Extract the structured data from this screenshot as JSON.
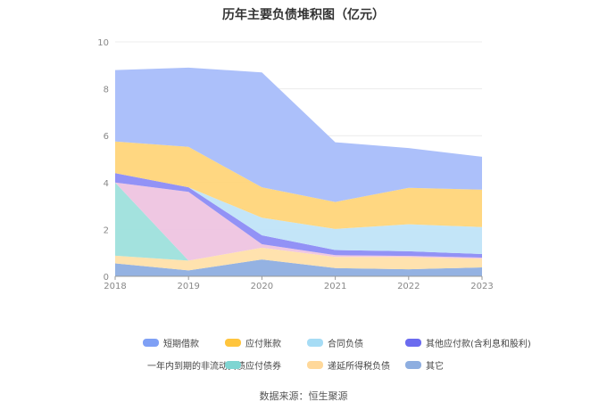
{
  "title": "历年主要负债堆积图（亿元）",
  "source": "数据来源：恒生聚源",
  "chart_data": {
    "type": "area",
    "stacked": true,
    "title": "历年主要负债堆积图（亿元）",
    "xlabel": "",
    "ylabel": "",
    "x": [
      "2018",
      "2019",
      "2020",
      "2021",
      "2022",
      "2023"
    ],
    "ylim": [
      0,
      10
    ],
    "yticks": [
      0,
      2,
      4,
      6,
      8,
      10
    ],
    "grid": true,
    "legend_position": "bottom",
    "series": [
      {
        "name": "其它",
        "color": "#8eaee0",
        "values": [
          0.55,
          0.25,
          0.72,
          0.35,
          0.3,
          0.38
        ]
      },
      {
        "name": "递延所得税负债",
        "color": "#ffe0aa",
        "values": [
          0.33,
          0.42,
          0.5,
          0.48,
          0.52,
          0.37
        ]
      },
      {
        "name": "应付债券",
        "color": "#9ee0dc",
        "values": [
          3.12,
          0.0,
          0.0,
          0.0,
          0.0,
          0.0
        ]
      },
      {
        "name": "一年内到期的非流动负债",
        "color": "#eec4e0",
        "values": [
          0.0,
          2.93,
          0.15,
          0.07,
          0.05,
          0.05
        ]
      },
      {
        "name": "其他应付款(含利息和股利)",
        "color": "#8c8cf5",
        "values": [
          0.4,
          0.2,
          0.38,
          0.22,
          0.2,
          0.15
        ]
      },
      {
        "name": "合同负债",
        "color": "#c0e4f8",
        "values": [
          0.0,
          0.0,
          0.75,
          0.9,
          1.15,
          1.15
        ]
      },
      {
        "name": "应付账款",
        "color": "#ffd57a",
        "values": [
          1.35,
          1.72,
          1.3,
          1.15,
          1.55,
          1.6
        ]
      },
      {
        "name": "短期借款",
        "color": "#a8bdfa",
        "values": [
          3.05,
          3.38,
          4.9,
          2.55,
          1.7,
          1.4
        ]
      }
    ]
  },
  "legend": [
    {
      "label": "短期借款",
      "color": "#7fa0f5"
    },
    {
      "label": "应付账款",
      "color": "#ffc53d"
    },
    {
      "label": "合同负债",
      "color": "#a6dcf5"
    },
    {
      "label": "其他应付款(含利息和股利)",
      "color": "#6b6bef"
    },
    {
      "label": "一年内到期的非流动负债",
      "color": "#e8b4d8"
    },
    {
      "label": "应付债券",
      "color": "#7fd5d2"
    },
    {
      "label": "递延所得税负债",
      "color": "#ffd89a"
    },
    {
      "label": "其它",
      "color": "#8eaee0"
    }
  ]
}
